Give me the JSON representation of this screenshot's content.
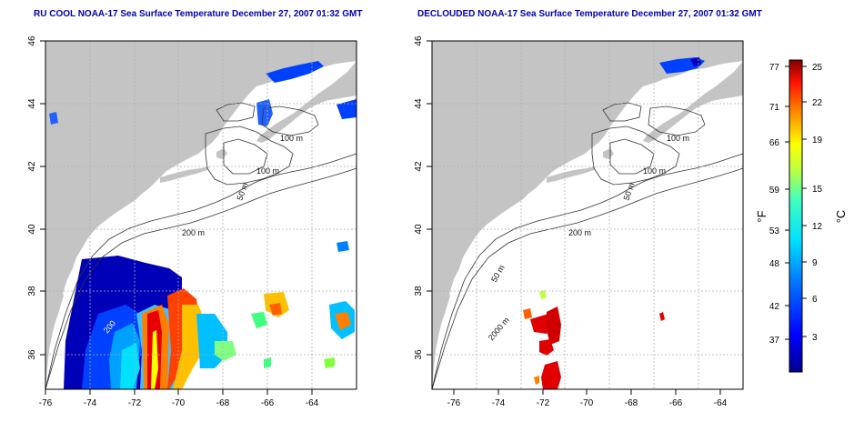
{
  "maps": [
    {
      "title": "RU COOL NOAA-17 Sea Surface Temperature December 27, 2007 01:32 GMT",
      "x_ticks": [
        "-76",
        "-74",
        "-72",
        "-70",
        "-68",
        "-66",
        "-64"
      ],
      "y_ticks": [
        "46",
        "44",
        "42",
        "40",
        "38",
        "36"
      ],
      "contour_labels": [
        "100 m",
        "100 m",
        "50 m",
        "200 m",
        "200"
      ]
    },
    {
      "title": "DECLOUDED NOAA-17 Sea Surface Temperature December 27, 2007 01:32 GMT",
      "x_ticks": [
        "-76",
        "-74",
        "-72",
        "-70",
        "-68",
        "-66",
        "-64"
      ],
      "y_ticks": [
        "46",
        "44",
        "42",
        "40",
        "38",
        "36"
      ],
      "contour_labels": [
        "100 m",
        "100 m",
        "50 m",
        "200 m",
        "50 m",
        "2000 m"
      ]
    }
  ],
  "colorbar": {
    "f_label": "°F",
    "c_label": "°C",
    "f_ticks": [
      "77",
      "71",
      "66",
      "59",
      "53",
      "48",
      "42",
      "37"
    ],
    "c_ticks": [
      "25",
      "22",
      "19",
      "15",
      "12",
      "9",
      "6",
      "3"
    ]
  },
  "colors": {
    "land": "#c4c4c4",
    "ocean": "#ffffff",
    "title": "#0000b0",
    "grid": "#b0b0b0"
  }
}
